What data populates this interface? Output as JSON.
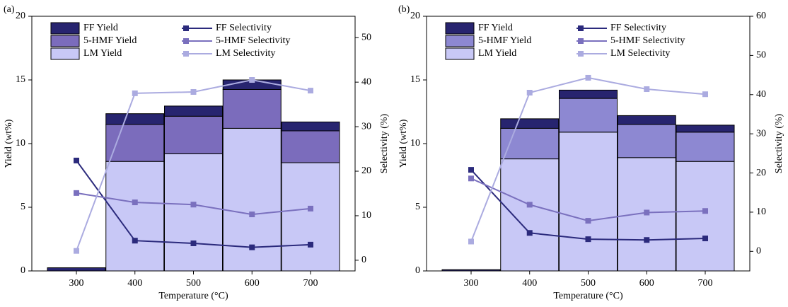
{
  "chart_data": [
    {
      "type": "bar",
      "stacked": true,
      "panel_label": "(a)",
      "x_label": "Temperature (°C)",
      "y_label": "Yield (wt%)",
      "y2_label": "Selectivity (%)",
      "categories": [
        300,
        400,
        500,
        600,
        700
      ],
      "ylim": [
        0,
        20
      ],
      "yticks": [
        0,
        5,
        10,
        15,
        20
      ],
      "y2lim": [
        -2.4,
        54.8
      ],
      "y2ticks": [
        0,
        10,
        20,
        30,
        40,
        50
      ],
      "series": [
        {
          "name": "LM Yield",
          "type": "bar",
          "color": "#c8c8f6",
          "values": [
            0,
            8.6,
            9.2,
            11.2,
            8.5
          ]
        },
        {
          "name": "5-HMF Yield",
          "type": "bar",
          "color": "#7b6cbc",
          "values": [
            0,
            2.9,
            2.95,
            3.05,
            2.5
          ]
        },
        {
          "name": "FF Yield",
          "type": "bar",
          "color": "#27246f",
          "values": [
            0.25,
            0.85,
            0.8,
            0.75,
            0.7
          ]
        },
        {
          "name": "FF Selectivity",
          "type": "line",
          "axis": "y2",
          "color": "#2b2a7c",
          "values": [
            22.4,
            4.4,
            3.8,
            2.9,
            3.5
          ]
        },
        {
          "name": "5-HMF Selectivity",
          "type": "line",
          "axis": "y2",
          "color": "#7a70be",
          "values": [
            15.1,
            13.0,
            12.5,
            10.3,
            11.6
          ]
        },
        {
          "name": "LM Selectivity",
          "type": "line",
          "axis": "y2",
          "color": "#ababe0",
          "values": [
            2.1,
            37.5,
            37.8,
            40.5,
            38.1
          ]
        }
      ]
    },
    {
      "type": "bar",
      "stacked": true,
      "panel_label": "(b)",
      "x_label": "Temperature (°C)",
      "y_label": "Yield (wt%)",
      "y2_label": "Selectivity (%)",
      "categories": [
        300,
        400,
        500,
        600,
        700
      ],
      "ylim": [
        0,
        20
      ],
      "yticks": [
        0,
        5,
        10,
        15,
        20
      ],
      "y2lim": [
        -5,
        60
      ],
      "y2ticks": [
        0,
        10,
        20,
        30,
        40,
        50,
        60
      ],
      "series": [
        {
          "name": "LM Yield",
          "type": "bar",
          "color": "#c8c8f6",
          "values": [
            0,
            8.8,
            10.9,
            8.9,
            8.6
          ]
        },
        {
          "name": "5-HMF Yield",
          "type": "bar",
          "color": "#8d88d2",
          "values": [
            0,
            2.4,
            2.65,
            2.6,
            2.3
          ]
        },
        {
          "name": "FF Yield",
          "type": "bar",
          "color": "#27246f",
          "values": [
            0.1,
            0.75,
            0.65,
            0.7,
            0.55
          ]
        },
        {
          "name": "FF Selectivity",
          "type": "line",
          "axis": "y2",
          "color": "#2b2a7c",
          "values": [
            20.8,
            4.7,
            3.1,
            2.9,
            3.3
          ]
        },
        {
          "name": "5-HMF Selectivity",
          "type": "line",
          "axis": "y2",
          "color": "#7a70be",
          "values": [
            18.6,
            11.9,
            7.8,
            9.9,
            10.3
          ]
        },
        {
          "name": "LM Selectivity",
          "type": "line",
          "axis": "y2",
          "color": "#ababe0",
          "values": [
            2.5,
            40.5,
            44.3,
            41.4,
            40.1
          ]
        }
      ]
    }
  ]
}
